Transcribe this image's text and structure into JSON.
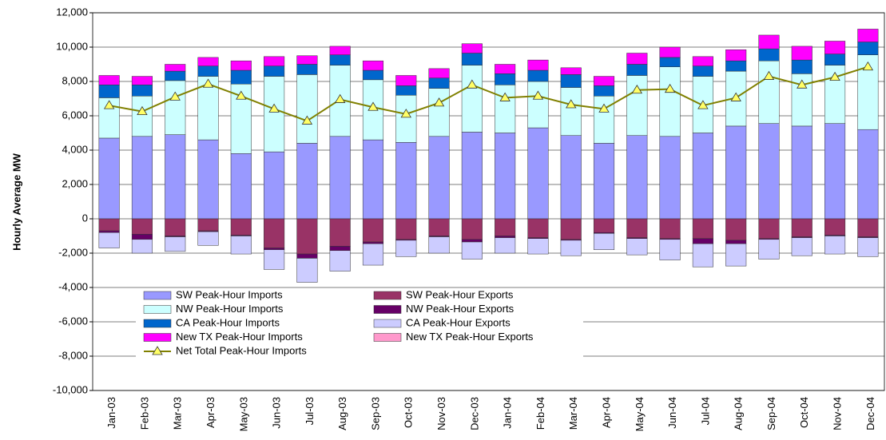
{
  "chart_data": {
    "type": "bar",
    "stacked": true,
    "y_label": "Hourly Average MW",
    "categories": [
      "Jan-03",
      "Feb-03",
      "Mar-03",
      "Apr-03",
      "May-03",
      "Jun-03",
      "Jul-03",
      "Aug-03",
      "Sep-03",
      "Oct-03",
      "Nov-03",
      "Dec-03",
      "Jan-04",
      "Feb-04",
      "Mar-04",
      "Apr-04",
      "May-04",
      "Jun-04",
      "Jul-04",
      "Aug-04",
      "Sep-04",
      "Oct-04",
      "Nov-04",
      "Dec-04"
    ],
    "series": [
      {
        "name": "SW Peak-Hour Imports",
        "color": "#9999ff",
        "values": [
          4700,
          4800,
          4900,
          4600,
          3800,
          3900,
          4400,
          4800,
          4600,
          4450,
          4800,
          5050,
          5000,
          5300,
          4850,
          4400,
          4850,
          4800,
          5000,
          5400,
          5550,
          5400,
          5550,
          5200
        ]
      },
      {
        "name": "NW Peak-Hour Imports",
        "color": "#ccffff",
        "values": [
          2350,
          2350,
          3150,
          3700,
          4050,
          4400,
          4000,
          4150,
          3500,
          2750,
          2800,
          3900,
          2800,
          2700,
          2800,
          2750,
          3500,
          4050,
          3300,
          3200,
          3650,
          3050,
          3400,
          4350
        ]
      },
      {
        "name": "CA Peak-Hour Imports",
        "color": "#0066cc",
        "values": [
          750,
          650,
          550,
          600,
          800,
          600,
          600,
          600,
          550,
          550,
          600,
          700,
          650,
          650,
          750,
          600,
          650,
          550,
          600,
          600,
          700,
          800,
          650,
          750
        ]
      },
      {
        "name": "New TX Peak-Hour Imports",
        "color": "#ff00ff",
        "values": [
          550,
          500,
          400,
          500,
          550,
          550,
          500,
          500,
          550,
          600,
          550,
          550,
          550,
          600,
          400,
          550,
          650,
          600,
          550,
          650,
          800,
          800,
          750,
          750
        ]
      },
      {
        "name": "SW Peak-Hour Exports",
        "color": "#993366",
        "values": [
          -700,
          -900,
          -1000,
          -700,
          -950,
          -1700,
          -2050,
          -1600,
          -1350,
          -1200,
          -1000,
          -1200,
          -1000,
          -1100,
          -1200,
          -800,
          -1100,
          -1150,
          -1150,
          -1250,
          -1150,
          -1050,
          -950,
          -1050
        ]
      },
      {
        "name": "NW Peak-Hour Exports",
        "color": "#660066",
        "values": [
          -100,
          -300,
          -50,
          -50,
          -50,
          -100,
          -250,
          -250,
          -100,
          -50,
          -50,
          -150,
          -100,
          -50,
          -50,
          -50,
          -50,
          -50,
          -300,
          -200,
          -50,
          -50,
          -50,
          -50
        ]
      },
      {
        "name": "CA Peak-Hour Exports",
        "color": "#ccccff",
        "values": [
          -900,
          -800,
          -850,
          -800,
          -1050,
          -1150,
          -1400,
          -1200,
          -1250,
          -950,
          -950,
          -1000,
          -900,
          -900,
          -900,
          -950,
          -950,
          -1200,
          -1350,
          -1300,
          -1150,
          -1050,
          -1050,
          -1100
        ]
      },
      {
        "name": "New TX Peak-Hour Exports",
        "color": "#ff99cc",
        "values": [
          0,
          0,
          0,
          0,
          0,
          0,
          0,
          0,
          0,
          0,
          0,
          0,
          0,
          0,
          0,
          0,
          0,
          0,
          0,
          0,
          0,
          0,
          0,
          0
        ]
      },
      {
        "name": "Net Total Peak-Hour Imports",
        "type": "line",
        "color": "#808000",
        "marker_color": "#ffff66",
        "values": [
          6600,
          6250,
          7100,
          7850,
          7150,
          6400,
          5700,
          6950,
          6500,
          6100,
          6750,
          7800,
          7050,
          7150,
          6650,
          6400,
          7500,
          7550,
          6600,
          7050,
          8300,
          7800,
          8250,
          8850
        ]
      }
    ],
    "ylim": [
      -10000,
      12000
    ],
    "yticks": [
      {
        "value": -10000,
        "label": "-10,000"
      },
      {
        "value": -8000,
        "label": "-8,000"
      },
      {
        "value": -6000,
        "label": "-6,000"
      },
      {
        "value": -4000,
        "label": "-4,000"
      },
      {
        "value": -2000,
        "label": "-2,000"
      },
      0,
      {
        "value": 2000,
        "label": "2,000"
      },
      {
        "value": 4000,
        "label": "4,000"
      },
      {
        "value": 6000,
        "label": "6,000"
      },
      {
        "value": 8000,
        "label": "8,000"
      },
      {
        "value": 10000,
        "label": "10,000"
      },
      {
        "value": 12000,
        "label": "12,000"
      }
    ],
    "grid": true
  }
}
